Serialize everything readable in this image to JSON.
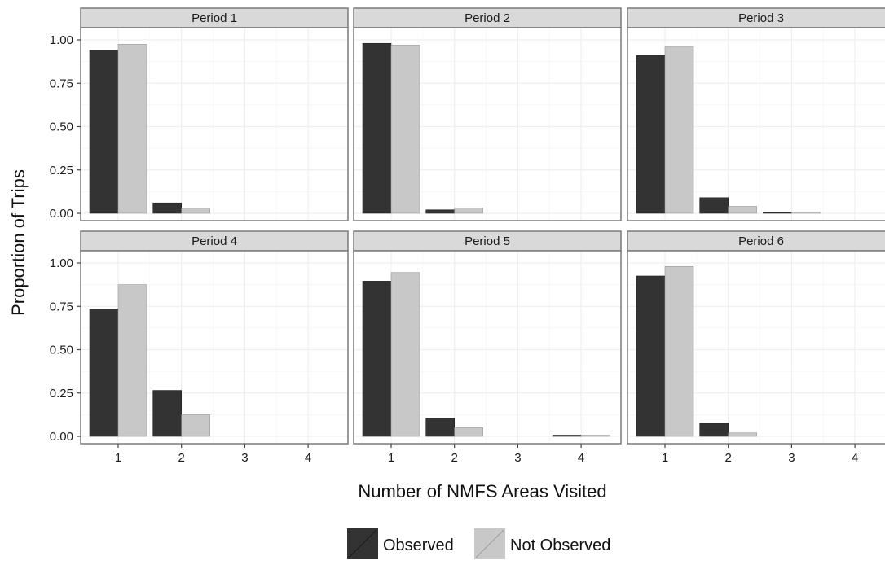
{
  "chart_data": {
    "type": "bar",
    "facet": "Period",
    "panels": [
      {
        "label": "Period 1",
        "categories": [
          "1",
          "2",
          "3",
          "4"
        ],
        "series": [
          {
            "name": "Observed",
            "values": [
              0.94,
              0.06,
              0.0,
              0.0
            ]
          },
          {
            "name": "Not Observed",
            "values": [
              0.975,
              0.025,
              0.0,
              0.0
            ]
          }
        ]
      },
      {
        "label": "Period 2",
        "categories": [
          "1",
          "2",
          "3",
          "4"
        ],
        "series": [
          {
            "name": "Observed",
            "values": [
              0.98,
              0.02,
              0.0,
              0.0
            ]
          },
          {
            "name": "Not Observed",
            "values": [
              0.97,
              0.03,
              0.0,
              0.0
            ]
          }
        ]
      },
      {
        "label": "Period 3",
        "categories": [
          "1",
          "2",
          "3",
          "4"
        ],
        "series": [
          {
            "name": "Observed",
            "values": [
              0.91,
              0.09,
              0.005,
              0.0
            ]
          },
          {
            "name": "Not Observed",
            "values": [
              0.96,
              0.04,
              0.005,
              0.0
            ]
          }
        ]
      },
      {
        "label": "Period 4",
        "categories": [
          "1",
          "2",
          "3",
          "4"
        ],
        "series": [
          {
            "name": "Observed",
            "values": [
              0.735,
              0.265,
              0.0,
              0.0
            ]
          },
          {
            "name": "Not Observed",
            "values": [
              0.875,
              0.125,
              0.0,
              0.0
            ]
          }
        ]
      },
      {
        "label": "Period 5",
        "categories": [
          "1",
          "2",
          "3",
          "4"
        ],
        "series": [
          {
            "name": "Observed",
            "values": [
              0.895,
              0.105,
              0.0,
              0.005
            ]
          },
          {
            "name": "Not Observed",
            "values": [
              0.945,
              0.05,
              0.0,
              0.005
            ]
          }
        ]
      },
      {
        "label": "Period 6",
        "categories": [
          "1",
          "2",
          "3",
          "4"
        ],
        "series": [
          {
            "name": "Observed",
            "values": [
              0.925,
              0.075,
              0.0,
              0.0
            ]
          },
          {
            "name": "Not Observed",
            "values": [
              0.98,
              0.02,
              0.0,
              0.0
            ]
          }
        ]
      }
    ],
    "xlabel": "Number of NMFS Areas Visited",
    "ylabel": "Proportion of Trips",
    "ylim": [
      0,
      1.0
    ],
    "yticks": [
      "0.00",
      "0.25",
      "0.50",
      "0.75",
      "1.00"
    ],
    "grid": true,
    "legend_position": "bottom",
    "colors": {
      "Observed": "#333333",
      "Not Observed": "#c8c8c8",
      "strip": "#d9d9d9",
      "grid": "#ebebeb"
    }
  }
}
